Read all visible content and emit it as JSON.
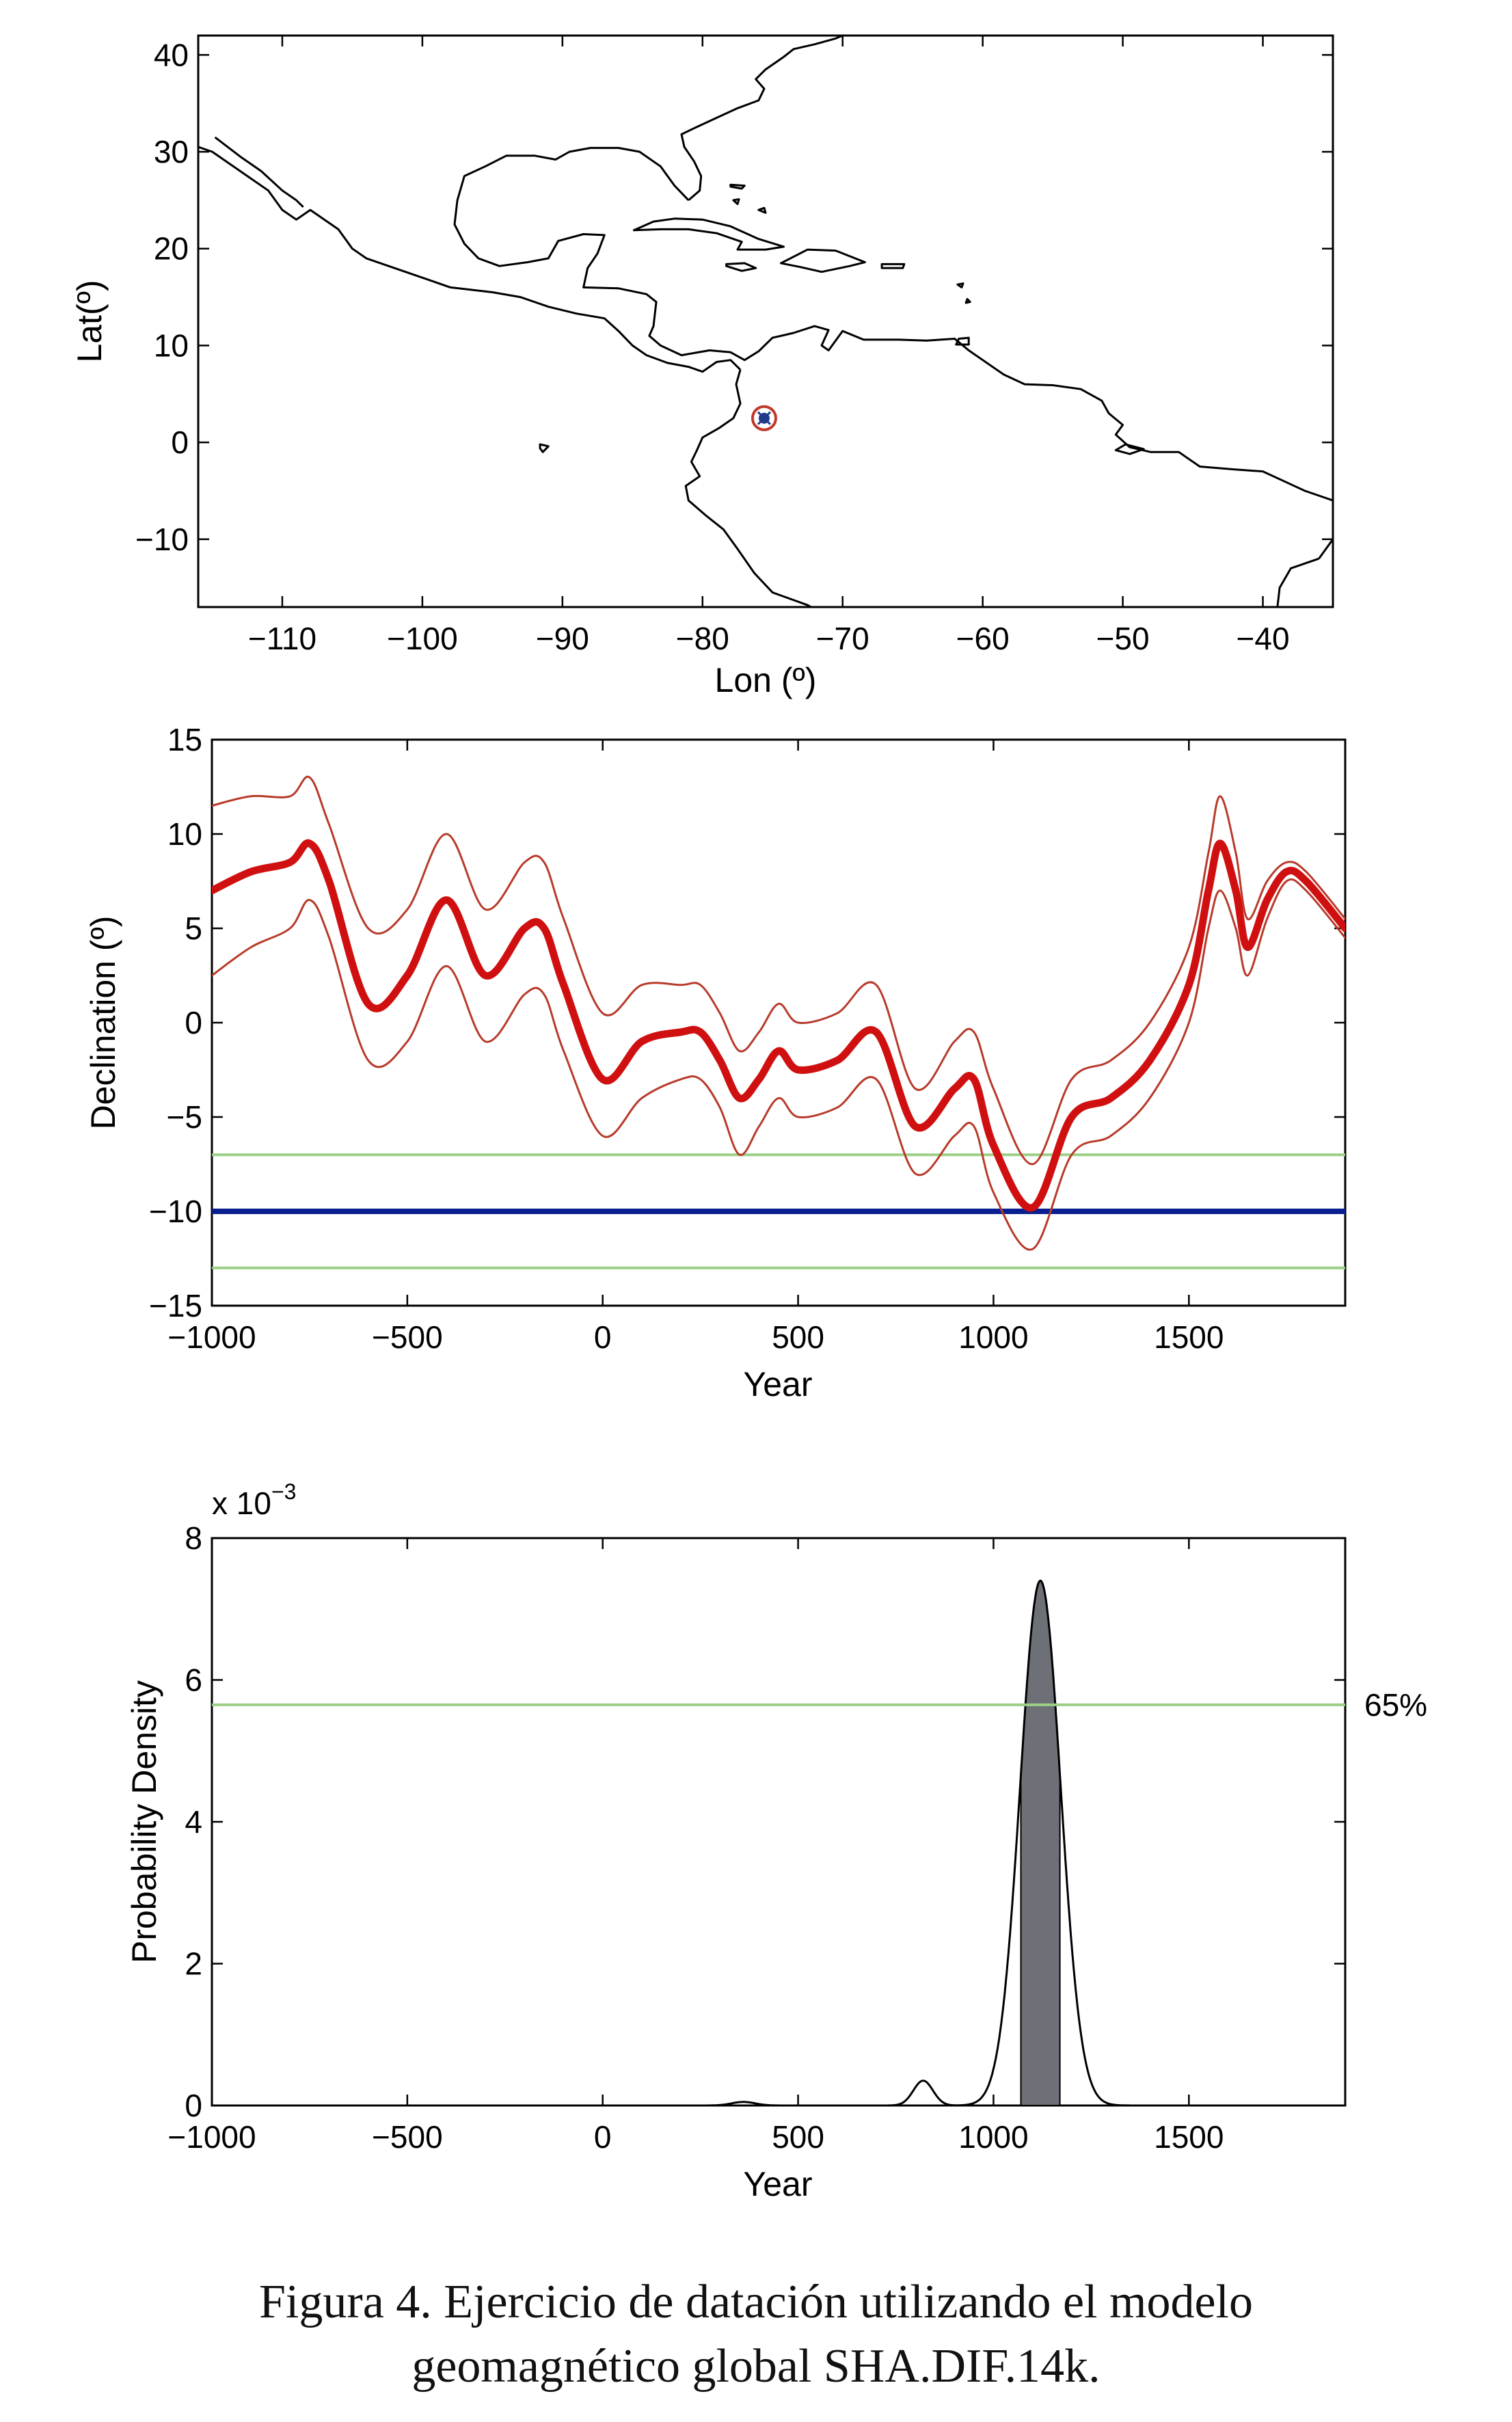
{
  "chart_data": [
    {
      "type": "map",
      "xlabel": "Lon (º)",
      "ylabel": "Lat(º)",
      "xlim": [
        -116,
        -35
      ],
      "ylim": [
        -17,
        42
      ],
      "xticks": [
        -110,
        -100,
        -90,
        -80,
        -70,
        -60,
        -50,
        -40
      ],
      "yticks": [
        40,
        30,
        20,
        10,
        0,
        -10
      ],
      "marker": {
        "lon": -75.6,
        "lat": 2.5
      },
      "colors": {
        "marker_ring": "#c0392b",
        "marker_center": "#1f3a8a",
        "coast": "#000000"
      }
    },
    {
      "type": "line",
      "xlabel": "Year",
      "ylabel": "Declination (º)",
      "xlim": [
        -1000,
        1900
      ],
      "ylim": [
        -15,
        15
      ],
      "xticks": [
        -1000,
        -500,
        0,
        500,
        1000,
        1500
      ],
      "yticks": [
        15,
        10,
        5,
        0,
        -5,
        -10,
        -15
      ],
      "x": [
        -1000,
        -900,
        -800,
        -750,
        -700,
        -600,
        -500,
        -400,
        -300,
        -200,
        -150,
        -100,
        0,
        100,
        200,
        250,
        300,
        350,
        400,
        450,
        500,
        600,
        700,
        800,
        900,
        950,
        1000,
        1100,
        1200,
        1300,
        1400,
        1500,
        1550,
        1580,
        1620,
        1650,
        1700,
        1750,
        1800,
        1900
      ],
      "series": [
        {
          "values": [
            7.0,
            8.0,
            8.5,
            9.5,
            7.5,
            1.0,
            2.5,
            6.5,
            2.5,
            5.0,
            5.0,
            2.0,
            -3.0,
            -1.0,
            -0.5,
            -0.5,
            -2.0,
            -4.0,
            -3.0,
            -1.5,
            -2.5,
            -2.0,
            -0.5,
            -5.5,
            -3.5,
            -3.0,
            -6.5,
            -9.8,
            -5.0,
            -4.0,
            -2.0,
            2.0,
            7.0,
            9.5,
            7.0,
            4.0,
            6.5,
            8.0,
            7.5,
            5.0
          ]
        },
        {
          "values": [
            11.5,
            12.0,
            12.0,
            13.0,
            10.5,
            5.0,
            6.0,
            10.0,
            6.0,
            8.5,
            8.5,
            5.5,
            0.5,
            2.0,
            2.0,
            2.0,
            0.5,
            -1.5,
            -0.5,
            1.0,
            0.0,
            0.5,
            2.0,
            -3.5,
            -1.0,
            -0.5,
            -3.5,
            -7.5,
            -3.0,
            -2.0,
            0.0,
            4.0,
            9.0,
            12.0,
            9.0,
            5.5,
            7.5,
            8.5,
            8.0,
            5.5
          ]
        },
        {
          "values": [
            2.5,
            4.0,
            5.0,
            6.5,
            4.5,
            -2.0,
            -1.0,
            3.0,
            -1.0,
            1.5,
            1.5,
            -1.5,
            -6.0,
            -4.0,
            -3.0,
            -3.0,
            -4.5,
            -7.0,
            -5.5,
            -4.0,
            -5.0,
            -4.5,
            -3.0,
            -8.0,
            -6.0,
            -5.5,
            -9.0,
            -12.0,
            -7.0,
            -6.0,
            -4.0,
            0.0,
            5.0,
            7.0,
            5.0,
            2.5,
            5.5,
            7.5,
            7.0,
            4.5
          ]
        }
      ],
      "reference_lines": [
        {
          "y": -10,
          "color": "#0a1f8f"
        },
        {
          "y": -7,
          "color": "#9ccf86"
        },
        {
          "y": -13,
          "color": "#9ccf86"
        }
      ],
      "colors": {
        "mean": "#d01010",
        "bounds": "#b83a2a"
      }
    },
    {
      "type": "area",
      "xlabel": "Year",
      "ylabel": "Probability Density",
      "multiplier": "x 10",
      "multiplier_exp": "−3",
      "xlim": [
        -1000,
        1900
      ],
      "ylim": [
        0,
        8
      ],
      "xticks": [
        -1000,
        -500,
        0,
        500,
        1000,
        1500
      ],
      "yticks": [
        8,
        6,
        4,
        2,
        0
      ],
      "peaks": [
        {
          "center": 1120,
          "height": 7.4,
          "width": 52
        },
        {
          "center": 820,
          "height": 0.35,
          "width": 25
        },
        {
          "center": 360,
          "height": 0.05,
          "width": 30
        }
      ],
      "shaded_interval": [
        1070,
        1170
      ],
      "threshold": {
        "y": 5.65,
        "label": "65%",
        "color": "#9ccf86"
      },
      "colors": {
        "fill": "#6e7077"
      }
    }
  ],
  "caption": {
    "line1": "Figura 4. Ejercicio de datación utilizando el modelo",
    "line2": "geomagnético global SHA.DIF.14k."
  }
}
